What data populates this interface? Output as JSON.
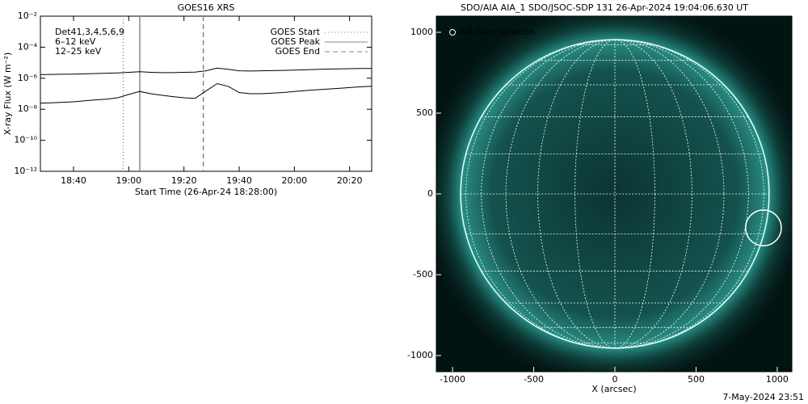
{
  "chart_data": [
    {
      "type": "line",
      "title": "GOES16 XRS",
      "ylabel": "X-ray Flux (W m⁻²)",
      "xlabel": "Start Time (26-Apr-24 18:28:00)",
      "log_y": true,
      "ylim": [
        1e-12,
        0.01
      ],
      "yticks": [
        {
          "value": 1e-12,
          "label": "10⁻¹²"
        },
        {
          "value": 1e-10,
          "label": "10⁻¹⁰"
        },
        {
          "value": 1e-08,
          "label": "10⁻⁸"
        },
        {
          "value": 1e-06,
          "label": "10⁻⁶"
        },
        {
          "value": 0.0001,
          "label": "10⁻⁴"
        },
        {
          "value": 0.01,
          "label": "10⁻²"
        }
      ],
      "xlim": [
        "18:28",
        "20:28"
      ],
      "xticks": [
        "18:40",
        "19:00",
        "19:20",
        "19:40",
        "20:00",
        "20:20"
      ],
      "x": [
        "18:28",
        "18:32",
        "18:36",
        "18:40",
        "18:44",
        "18:48",
        "18:52",
        "18:56",
        "19:00",
        "19:04",
        "19:08",
        "19:12",
        "19:16",
        "19:20",
        "19:24",
        "19:28",
        "19:32",
        "19:36",
        "19:40",
        "19:44",
        "19:48",
        "19:52",
        "19:56",
        "20:00",
        "20:04",
        "20:08",
        "20:12",
        "20:16",
        "20:20",
        "20:24",
        "20:28"
      ],
      "series": [
        {
          "color": "#000000",
          "values": [
            1.7e-06,
            1.75e-06,
            1.8e-06,
            1.85e-06,
            1.9e-06,
            2e-06,
            2.1e-06,
            2.2e-06,
            2.4e-06,
            2.6e-06,
            2.4e-06,
            2.3e-06,
            2.3e-06,
            2.4e-06,
            2.5e-06,
            3e-06,
            4.5e-06,
            3.8e-06,
            3e-06,
            2.9e-06,
            3e-06,
            3.1e-06,
            3.2e-06,
            3.3e-06,
            3.5e-06,
            3.7e-06,
            3.9e-06,
            4e-06,
            4.1e-06,
            4.2e-06,
            4.2e-06
          ]
        },
        {
          "color": "#000000",
          "values": [
            2.5e-08,
            2.6e-08,
            2.8e-08,
            3e-08,
            3.5e-08,
            4e-08,
            4.5e-08,
            5.5e-08,
            9e-08,
            1.4e-07,
            1e-07,
            8e-08,
            6.5e-08,
            5.5e-08,
            5e-08,
            1.5e-07,
            4.5e-07,
            3e-07,
            1.2e-07,
            1e-07,
            1e-07,
            1.1e-07,
            1.2e-07,
            1.4e-07,
            1.6e-07,
            1.8e-07,
            2e-07,
            2.2e-07,
            2.5e-07,
            2.8e-07,
            3e-07
          ]
        }
      ],
      "legend_texts": [
        {
          "text": "Det41,3,4,5,6,9",
          "color": "#000000"
        },
        {
          "text": "6–12 keV",
          "color": "#e020e0"
        },
        {
          "text": "12–25 keV",
          "color": "#20d020"
        }
      ],
      "markers": [
        {
          "label": "GOES Start",
          "x": "18:58",
          "style": "dotted",
          "color": "#888888"
        },
        {
          "label": "GOES Peak",
          "x": "19:04",
          "style": "solid",
          "color": "#888888"
        },
        {
          "label": "GOES End",
          "x": "19:27",
          "style": "dashed",
          "color": "#888888"
        }
      ]
    },
    {
      "type": "image",
      "title": "SDO/AIA AIA_1 SDO/JSOC-SDP 131 26-Apr-2024 19:04:06.630 UT",
      "xlabel": "X (arcsec)",
      "xlim": [
        -1100,
        1090
      ],
      "ylim": [
        -1100,
        1100
      ],
      "xticks": [
        -1000,
        -500,
        0,
        500,
        1000
      ],
      "yticks": [
        -1000,
        -500,
        0,
        500,
        1000
      ],
      "solar_radius": 950,
      "grid_spacing_deg": 15,
      "flare": {
        "label": "AIA flare location",
        "x": 915,
        "y": -210,
        "r": 110
      },
      "timestamp": "7-May-2024 23:51"
    }
  ]
}
